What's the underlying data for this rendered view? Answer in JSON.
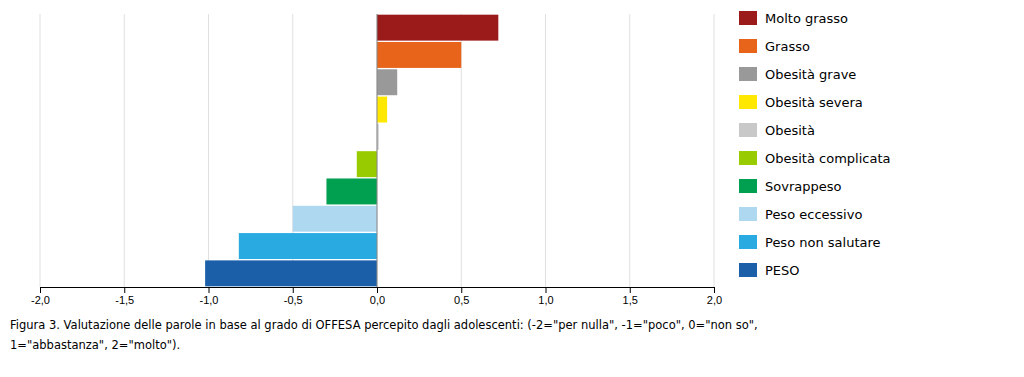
{
  "chart_data": {
    "type": "bar",
    "orientation": "horizontal",
    "categories": [
      "Molto grasso",
      "Grasso",
      "Obesità grave",
      "Obesità severa",
      "Obesità",
      "Obesità complicata",
      "Sovrappeso",
      "Peso eccessivo",
      "Peso non salutare",
      "PESO"
    ],
    "values": [
      0.72,
      0.5,
      0.12,
      0.06,
      0.01,
      -0.12,
      -0.3,
      -0.5,
      -0.82,
      -1.02
    ],
    "colors": [
      "#9B1B1B",
      "#E8641A",
      "#999999",
      "#FFE800",
      "#C8C8C8",
      "#99CC00",
      "#00A050",
      "#ADD8F0",
      "#29ABE2",
      "#1A5FA8"
    ],
    "xlim": [
      -2.0,
      2.0
    ],
    "xticks": [
      {
        "value": -2.0,
        "label": "-2,0"
      },
      {
        "value": -1.5,
        "label": "-1,5"
      },
      {
        "value": -1.0,
        "label": "-1,0"
      },
      {
        "value": -0.5,
        "label": "-0,5"
      },
      {
        "value": 0.0,
        "label": "0,0"
      },
      {
        "value": 0.5,
        "label": "0,5"
      },
      {
        "value": 1.0,
        "label": "1,0"
      },
      {
        "value": 1.5,
        "label": "1,5"
      },
      {
        "value": 2.0,
        "label": "2,0"
      }
    ],
    "grid": true,
    "legend": "right",
    "tick_labels": "x",
    "annotations": [
      "Figura 3. Valutazione delle parole in base al grado di OFFESA percepito dagli adolescenti: (-2=\"per nulla\", -1=\"poco\", 0=\"non so\",",
      "1=\"abbastanza\", 2=\"molto\")."
    ]
  }
}
